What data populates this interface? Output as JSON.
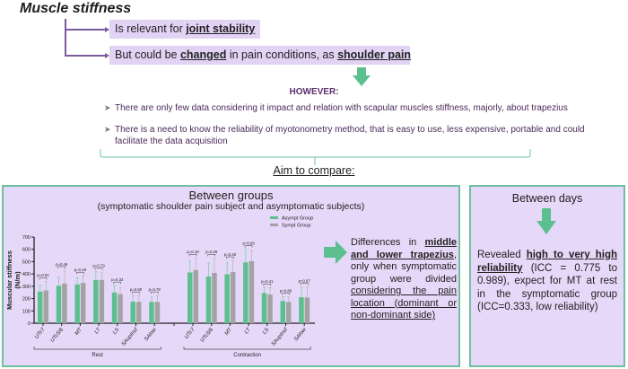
{
  "header": {
    "title": "Muscle stiffness",
    "points": [
      {
        "prefix": "Is relevant for ",
        "emph": "joint stability",
        "suffix": ""
      },
      {
        "prefix": "But could be ",
        "emph": "changed",
        "middle": " in pain conditions, as ",
        "emph2": "shoulder pain"
      }
    ]
  },
  "however": {
    "label": "HOWEVER:",
    "bullets": [
      "There are only few data considering it impact and relation with scapular muscles stiffness, majorly, about trapezius",
      "There is a need to know the reliability of myotonometry method, that is easy to use, less expensive, portable and could facilitate the data acquisition"
    ]
  },
  "aim": {
    "label": "Aim to compare:"
  },
  "between_groups": {
    "title": "Between groups",
    "subtitle": "(symptomatic shoulder pain subject and asymptomatic subjects)",
    "finding": {
      "t1": "Differences in ",
      "u1": "middle and lower trapezius",
      "t2": ", only when symptomatic group were divided ",
      "u2": "considering the pain location (dominant or non-dominant side)"
    }
  },
  "between_days": {
    "title": "Between days",
    "t1": "Revealed ",
    "u1": "high to very high reliability",
    "t2": " (ICC = 0.775 to 0.989), expect for MT at rest in the symptomatic group (ICC=0.333, low reliability)"
  },
  "colors": {
    "asympt": "#5cc08e",
    "sympt": "#a3a3a3",
    "panel_border": "#6dbf9e",
    "panel_bg": "#e6d8f8",
    "box_bg": "#e2d3f5",
    "arrow": "#5cbf8f",
    "connector": "#7b5b9c"
  },
  "chart_data": {
    "type": "bar",
    "title": "",
    "ylabel": "Muscular stiffness (N/m)",
    "xlabel": "",
    "ylim": [
      0,
      700
    ],
    "yticks": [
      0,
      100,
      200,
      300,
      400,
      500,
      600,
      700
    ],
    "legend": [
      "Asympt Group",
      "Sympt Group"
    ],
    "legend_position": "top-right",
    "grid": false,
    "groups": [
      {
        "name": "Rest",
        "categories": [
          "UTc7",
          "UTc5/6",
          "MT",
          "LT",
          "LS",
          "SAupInsf",
          "SAlow"
        ],
        "series": [
          {
            "name": "Asympt Group",
            "values": [
              257,
              305,
              315,
              351,
              250,
              175,
              173
            ],
            "sd": [
              52,
              70,
              55,
              68,
              55,
              50,
              38
            ]
          },
          {
            "name": "Sympt Group",
            "values": [
              267,
              322,
              327,
              351,
              236,
              173,
              173
            ],
            "sd": [
              73,
              108,
              58,
              64,
              54,
              52,
              52
            ]
          }
        ],
        "p_values": [
          "p=0.51",
          "p=0.46",
          "p=0.19",
          "p=0.79",
          "p=0.32",
          "p=0.80",
          "p=0.78"
        ]
      },
      {
        "name": "Contraction",
        "categories": [
          "UTc7",
          "UTc5/6",
          "MT",
          "LT",
          "LS",
          "SAupInsf",
          "SAlow"
        ],
        "series": [
          {
            "name": "Asympt Group",
            "values": [
              412,
              379,
              398,
              494,
              245,
              180,
              211
            ],
            "sd": [
              93,
              111,
              92,
              106,
              45,
              35,
              79
            ]
          },
          {
            "name": "Sympt Group",
            "values": [
              432,
              408,
              415,
              504,
              233,
              173,
              209
            ],
            "sd": [
              98,
              122,
              95,
              86,
              57,
              42,
              86
            ]
          }
        ],
        "p_values": [
          "p=0.19",
          "p=0.28",
          "p=0.28",
          "p=0.68",
          "p=0.41",
          "p=0.80",
          "p=0.87"
        ]
      }
    ]
  }
}
